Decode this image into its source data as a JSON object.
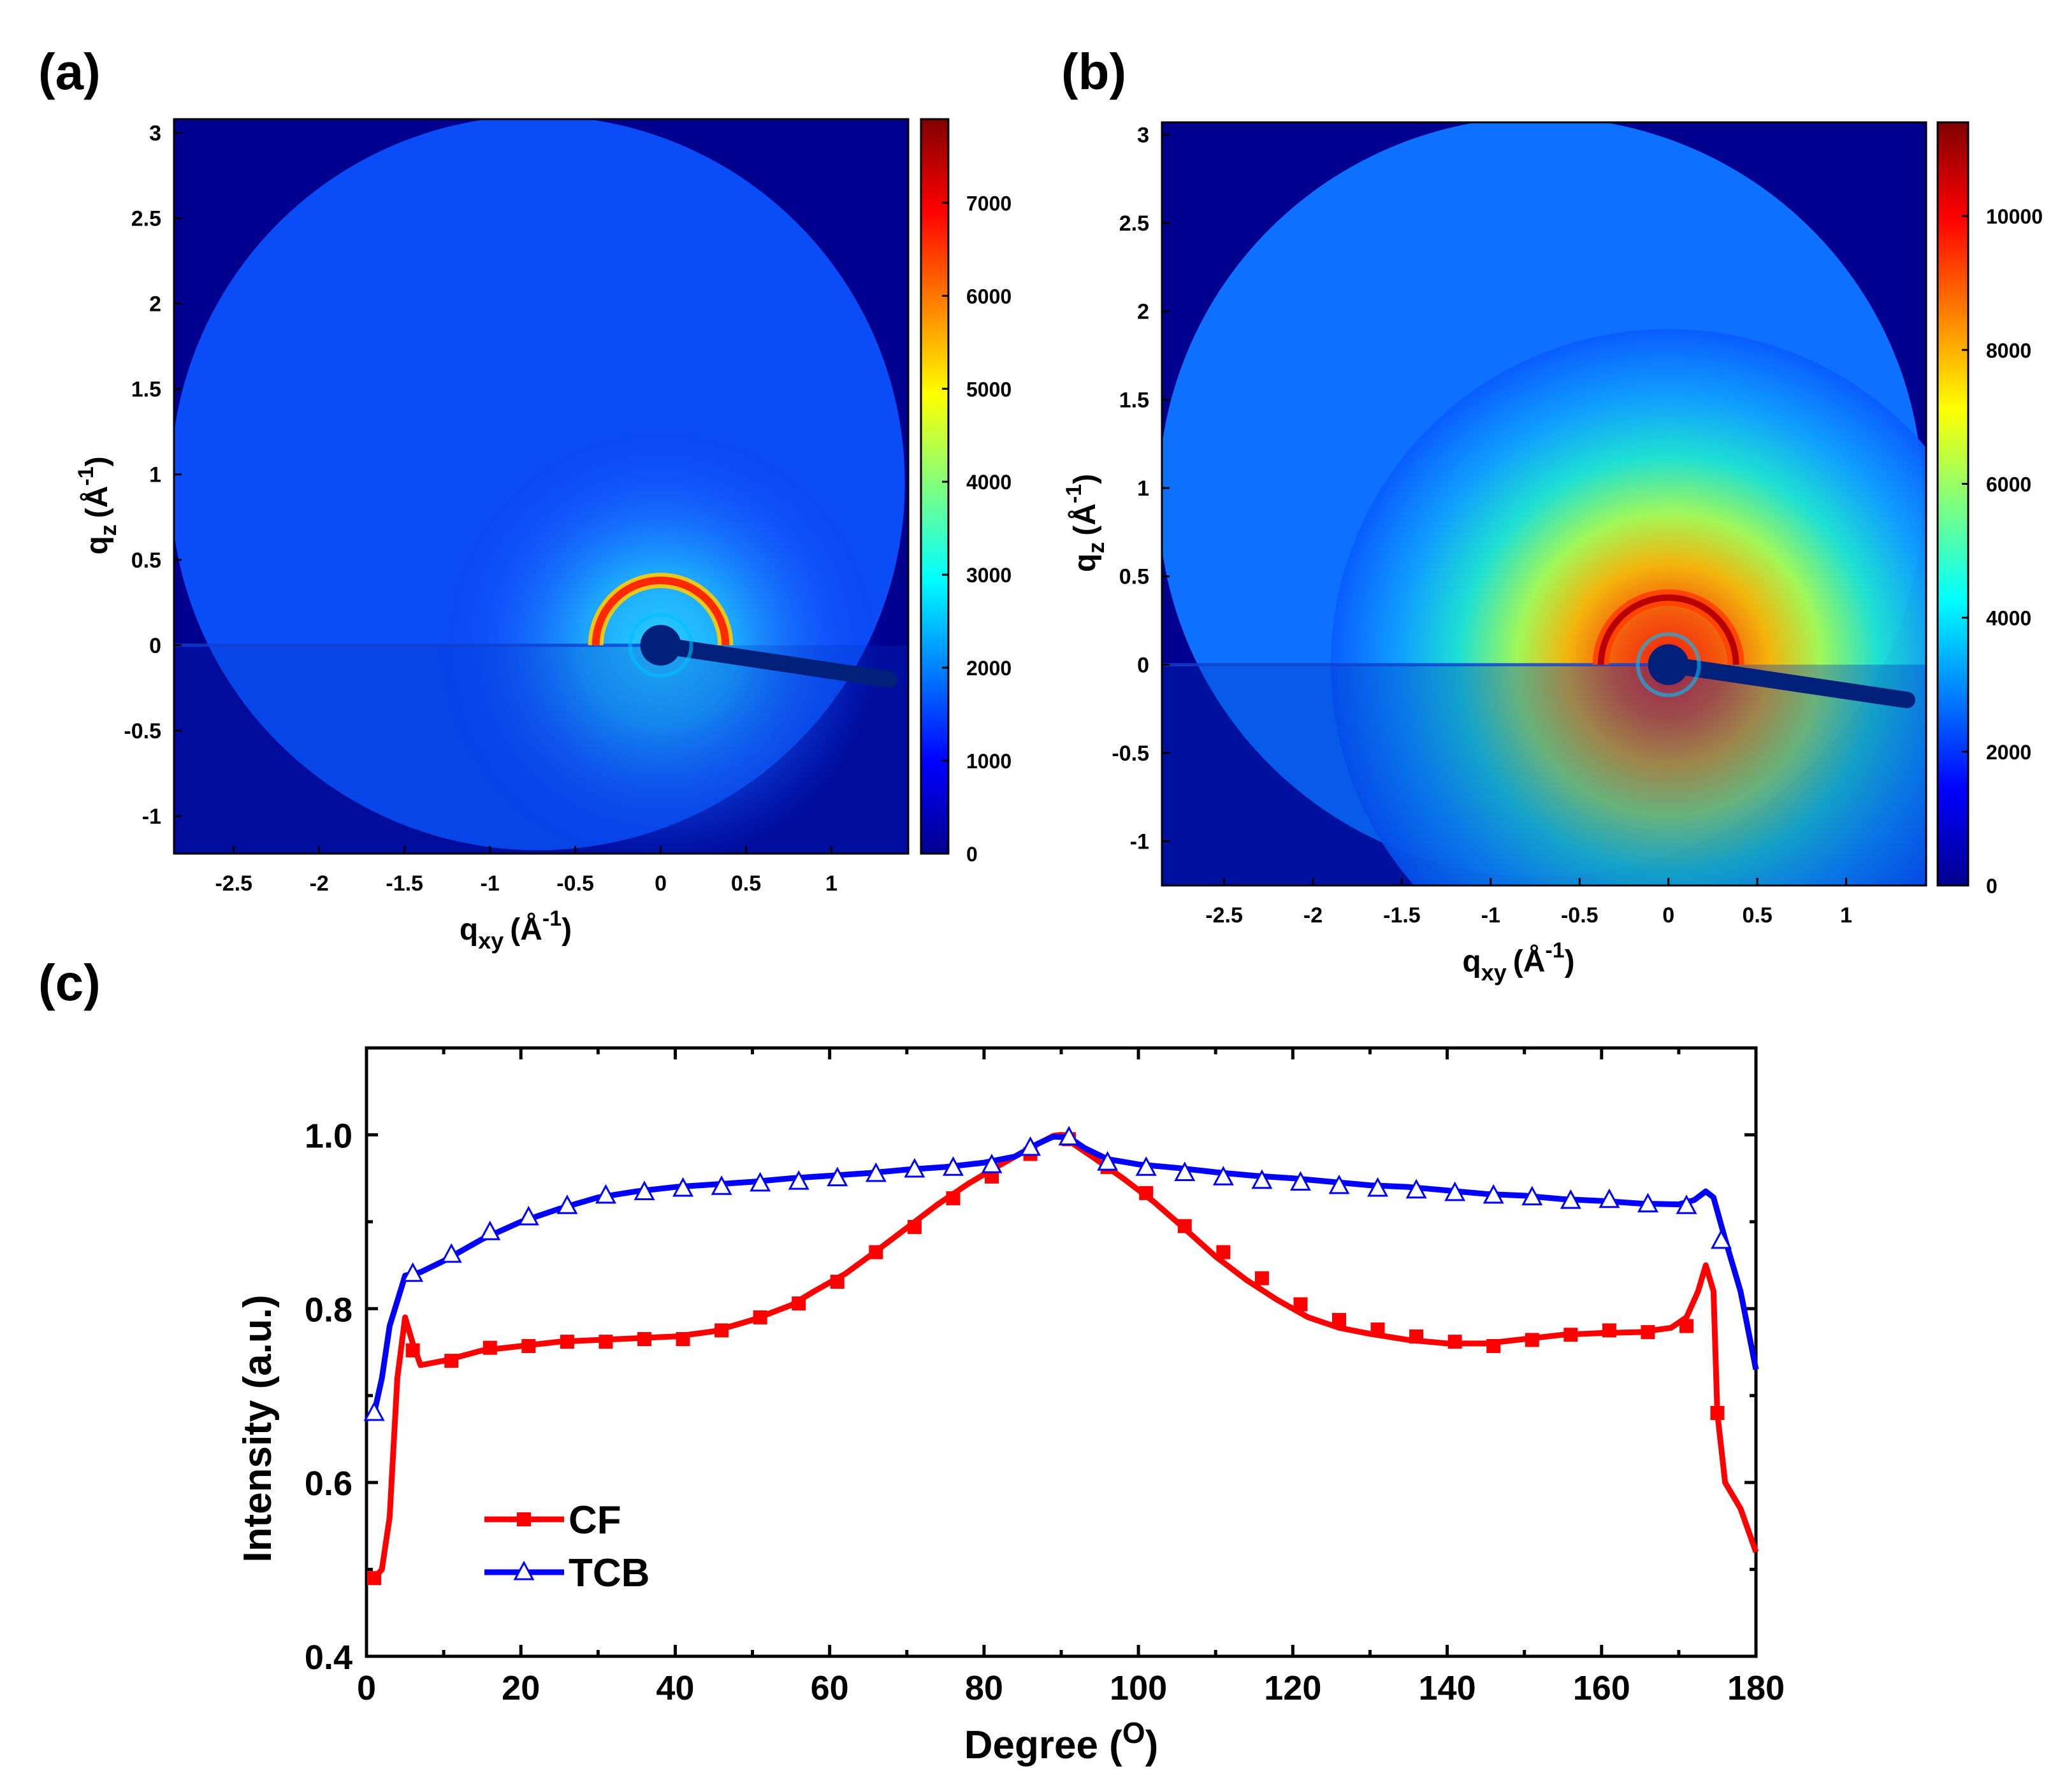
{
  "figure": {
    "panel_a_label": "(a)",
    "panel_b_label": "(b)",
    "panel_c_label": "(c)"
  },
  "colors": {
    "background_map": "#00008f",
    "cf_series": "#ff0000",
    "tcb_series": "#0000ff",
    "axis": "#000000"
  },
  "chart_data": [
    {
      "id": "a",
      "type": "heatmap",
      "title": "",
      "xlabel": "q",
      "xlabel_sub": "xy",
      "xlabel_unit": "(Å",
      "xlabel_sup": "-1",
      "xlabel_close": ")",
      "ylabel": "q",
      "ylabel_sub": "z",
      "ylabel_unit": "(Å",
      "ylabel_sup": "-1",
      "ylabel_close": ")",
      "xlim": [
        -2.85,
        1.45
      ],
      "ylim": [
        -1.22,
        3.08
      ],
      "xticks": [
        -2.5,
        -2,
        -1.5,
        -1,
        -0.5,
        0,
        0.5,
        1
      ],
      "xtick_labels": [
        "-2.5",
        "-2",
        "-1.5",
        "-1",
        "-0.5",
        "0",
        "0.5",
        "1"
      ],
      "yticks": [
        -1,
        -0.5,
        0,
        0.5,
        1,
        1.5,
        2,
        2.5,
        3
      ],
      "ytick_labels": [
        "-1",
        "-0.5",
        "0",
        "0.5",
        "1",
        "1.5",
        "2",
        "2.5",
        "3"
      ],
      "colorbar": {
        "range": [
          0,
          7900
        ],
        "ticks": [
          0,
          1000,
          2000,
          3000,
          4000,
          5000,
          6000,
          7000
        ],
        "tick_labels": [
          "0",
          "1000",
          "2000",
          "3000",
          "4000",
          "5000",
          "6000",
          "7000"
        ]
      },
      "features": {
        "detector_center": [
          -0.72,
          0.95
        ],
        "detector_radius": 2.15,
        "ring_q": 0.38,
        "ring_intensity": 7000,
        "diffuse_peak_intensity": 3200
      }
    },
    {
      "id": "b",
      "type": "heatmap",
      "title": "",
      "xlabel": "q",
      "xlabel_sub": "xy",
      "xlabel_unit": "(Å",
      "xlabel_sup": "-1",
      "xlabel_close": ")",
      "ylabel": "q",
      "ylabel_sub": "z",
      "ylabel_unit": "(Å",
      "ylabel_sup": "-1",
      "ylabel_close": ")",
      "xlim": [
        -2.85,
        1.45
      ],
      "ylim": [
        -1.25,
        3.07
      ],
      "xticks": [
        -2.5,
        -2,
        -1.5,
        -1,
        -0.5,
        0,
        0.5,
        1
      ],
      "xtick_labels": [
        "-2.5",
        "-2",
        "-1.5",
        "-1",
        "-0.5",
        "0",
        "0.5",
        "1"
      ],
      "yticks": [
        -1,
        -0.5,
        0,
        0.5,
        1,
        1.5,
        2,
        2.5,
        3
      ],
      "ytick_labels": [
        "-1",
        "-0.5",
        "0",
        "0.5",
        "1",
        "1.5",
        "2",
        "2.5",
        "3"
      ],
      "colorbar": {
        "range": [
          0,
          11400
        ],
        "ticks": [
          0,
          2000,
          4000,
          6000,
          8000,
          10000
        ],
        "tick_labels": [
          "0",
          "2000",
          "4000",
          "6000",
          "8000",
          "10000"
        ]
      },
      "features": {
        "detector_center": [
          -0.72,
          0.95
        ],
        "detector_radius": 2.15,
        "ring_q": 0.38,
        "ring_intensity": 10500,
        "diffuse_peak_intensity": 9000
      }
    },
    {
      "id": "c",
      "type": "line",
      "title": "",
      "xlabel": "Degree (",
      "xlabel_sup": "O",
      "xlabel_close": ")",
      "ylabel": "Intensity (a.u.)",
      "xlim": [
        0,
        180
      ],
      "ylim": [
        0.4,
        1.1
      ],
      "xticks": [
        0,
        20,
        40,
        60,
        80,
        100,
        120,
        140,
        160,
        180
      ],
      "xtick_labels": [
        "0",
        "20",
        "40",
        "60",
        "80",
        "100",
        "120",
        "140",
        "160",
        "180"
      ],
      "yticks": [
        0.4,
        0.6,
        0.8,
        1.0
      ],
      "ytick_labels": [
        "0.4",
        "0.6",
        "0.8",
        "1.0"
      ],
      "legend_position": "bottom-left",
      "series": [
        {
          "name": "CF",
          "marker": "square",
          "line": [
            [
              1,
              0.49
            ],
            [
              2,
              0.5
            ],
            [
              3,
              0.56
            ],
            [
              4,
              0.72
            ],
            [
              5,
              0.79
            ],
            [
              6,
              0.76
            ],
            [
              7,
              0.735
            ],
            [
              10,
              0.74
            ],
            [
              15,
              0.752
            ],
            [
              20,
              0.757
            ],
            [
              25,
              0.762
            ],
            [
              30,
              0.764
            ],
            [
              35,
              0.766
            ],
            [
              40,
              0.768
            ],
            [
              45,
              0.774
            ],
            [
              50,
              0.787
            ],
            [
              55,
              0.804
            ],
            [
              58,
              0.82
            ],
            [
              62,
              0.84
            ],
            [
              66,
              0.866
            ],
            [
              70,
              0.893
            ],
            [
              74,
              0.92
            ],
            [
              78,
              0.944
            ],
            [
              82,
              0.965
            ],
            [
              86,
              0.985
            ],
            [
              89,
              0.999
            ],
            [
              90,
              1.0
            ],
            [
              91,
              0.993
            ],
            [
              94,
              0.975
            ],
            [
              98,
              0.95
            ],
            [
              102,
              0.923
            ],
            [
              106,
              0.892
            ],
            [
              110,
              0.86
            ],
            [
              114,
              0.833
            ],
            [
              118,
              0.81
            ],
            [
              122,
              0.79
            ],
            [
              126,
              0.778
            ],
            [
              130,
              0.771
            ],
            [
              135,
              0.764
            ],
            [
              140,
              0.76
            ],
            [
              145,
              0.76
            ],
            [
              150,
              0.765
            ],
            [
              155,
              0.77
            ],
            [
              160,
              0.772
            ],
            [
              165,
              0.773
            ],
            [
              169,
              0.778
            ],
            [
              171,
              0.79
            ],
            [
              172.5,
              0.82
            ],
            [
              173.5,
              0.85
            ],
            [
              174.5,
              0.82
            ],
            [
              175,
              0.68
            ],
            [
              176,
              0.6
            ],
            [
              178,
              0.57
            ],
            [
              180,
              0.52
            ]
          ],
          "points": [
            [
              1,
              0.49
            ],
            [
              6,
              0.752
            ],
            [
              11,
              0.74
            ],
            [
              16,
              0.755
            ],
            [
              21,
              0.757
            ],
            [
              26,
              0.762
            ],
            [
              31,
              0.762
            ],
            [
              36,
              0.765
            ],
            [
              41,
              0.765
            ],
            [
              46,
              0.775
            ],
            [
              51,
              0.79
            ],
            [
              56,
              0.806
            ],
            [
              61,
              0.831
            ],
            [
              66,
              0.865
            ],
            [
              71,
              0.894
            ],
            [
              76,
              0.927
            ],
            [
              81,
              0.952
            ],
            [
              86,
              0.978
            ],
            [
              91,
              0.995
            ],
            [
              96,
              0.963
            ],
            [
              101,
              0.933
            ],
            [
              106,
              0.895
            ],
            [
              111,
              0.865
            ],
            [
              116,
              0.835
            ],
            [
              121,
              0.805
            ],
            [
              126,
              0.787
            ],
            [
              131,
              0.776
            ],
            [
              136,
              0.768
            ],
            [
              141,
              0.762
            ],
            [
              146,
              0.757
            ],
            [
              151,
              0.764
            ],
            [
              156,
              0.77
            ],
            [
              161,
              0.775
            ],
            [
              166,
              0.773
            ],
            [
              171,
              0.78
            ],
            [
              175,
              0.68
            ]
          ]
        },
        {
          "name": "TCB",
          "marker": "triangle-open",
          "line": [
            [
              1,
              0.68
            ],
            [
              2,
              0.72
            ],
            [
              3,
              0.78
            ],
            [
              5,
              0.838
            ],
            [
              7,
              0.842
            ],
            [
              10,
              0.855
            ],
            [
              15,
              0.88
            ],
            [
              20,
              0.9
            ],
            [
              25,
              0.915
            ],
            [
              30,
              0.928
            ],
            [
              35,
              0.935
            ],
            [
              40,
              0.94
            ],
            [
              45,
              0.943
            ],
            [
              50,
              0.946
            ],
            [
              55,
              0.95
            ],
            [
              60,
              0.953
            ],
            [
              65,
              0.956
            ],
            [
              70,
              0.96
            ],
            [
              75,
              0.963
            ],
            [
              80,
              0.968
            ],
            [
              84,
              0.975
            ],
            [
              87,
              0.99
            ],
            [
              89,
              0.998
            ],
            [
              91,
              0.997
            ],
            [
              93,
              0.985
            ],
            [
              96,
              0.972
            ],
            [
              100,
              0.966
            ],
            [
              105,
              0.962
            ],
            [
              110,
              0.957
            ],
            [
              115,
              0.953
            ],
            [
              120,
              0.95
            ],
            [
              125,
              0.946
            ],
            [
              130,
              0.942
            ],
            [
              135,
              0.94
            ],
            [
              140,
              0.936
            ],
            [
              145,
              0.932
            ],
            [
              150,
              0.93
            ],
            [
              155,
              0.926
            ],
            [
              160,
              0.924
            ],
            [
              165,
              0.921
            ],
            [
              170,
              0.92
            ],
            [
              172,
              0.925
            ],
            [
              173.5,
              0.935
            ],
            [
              174.5,
              0.928
            ],
            [
              176,
              0.88
            ],
            [
              178,
              0.82
            ],
            [
              180,
              0.73
            ]
          ],
          "points": [
            [
              1,
              0.68
            ],
            [
              6,
              0.84
            ],
            [
              11,
              0.862
            ],
            [
              16,
              0.888
            ],
            [
              21,
              0.905
            ],
            [
              26,
              0.918
            ],
            [
              31,
              0.93
            ],
            [
              36,
              0.934
            ],
            [
              41,
              0.938
            ],
            [
              46,
              0.94
            ],
            [
              51,
              0.944
            ],
            [
              56,
              0.946
            ],
            [
              61,
              0.95
            ],
            [
              66,
              0.955
            ],
            [
              71,
              0.96
            ],
            [
              76,
              0.962
            ],
            [
              81,
              0.965
            ],
            [
              86,
              0.985
            ],
            [
              91,
              0.997
            ],
            [
              96,
              0.968
            ],
            [
              101,
              0.962
            ],
            [
              106,
              0.956
            ],
            [
              111,
              0.951
            ],
            [
              116,
              0.947
            ],
            [
              121,
              0.945
            ],
            [
              126,
              0.941
            ],
            [
              131,
              0.938
            ],
            [
              136,
              0.936
            ],
            [
              141,
              0.933
            ],
            [
              146,
              0.93
            ],
            [
              151,
              0.928
            ],
            [
              156,
              0.924
            ],
            [
              161,
              0.925
            ],
            [
              166,
              0.92
            ],
            [
              171,
              0.918
            ],
            [
              175.5,
              0.878
            ]
          ]
        }
      ]
    }
  ]
}
